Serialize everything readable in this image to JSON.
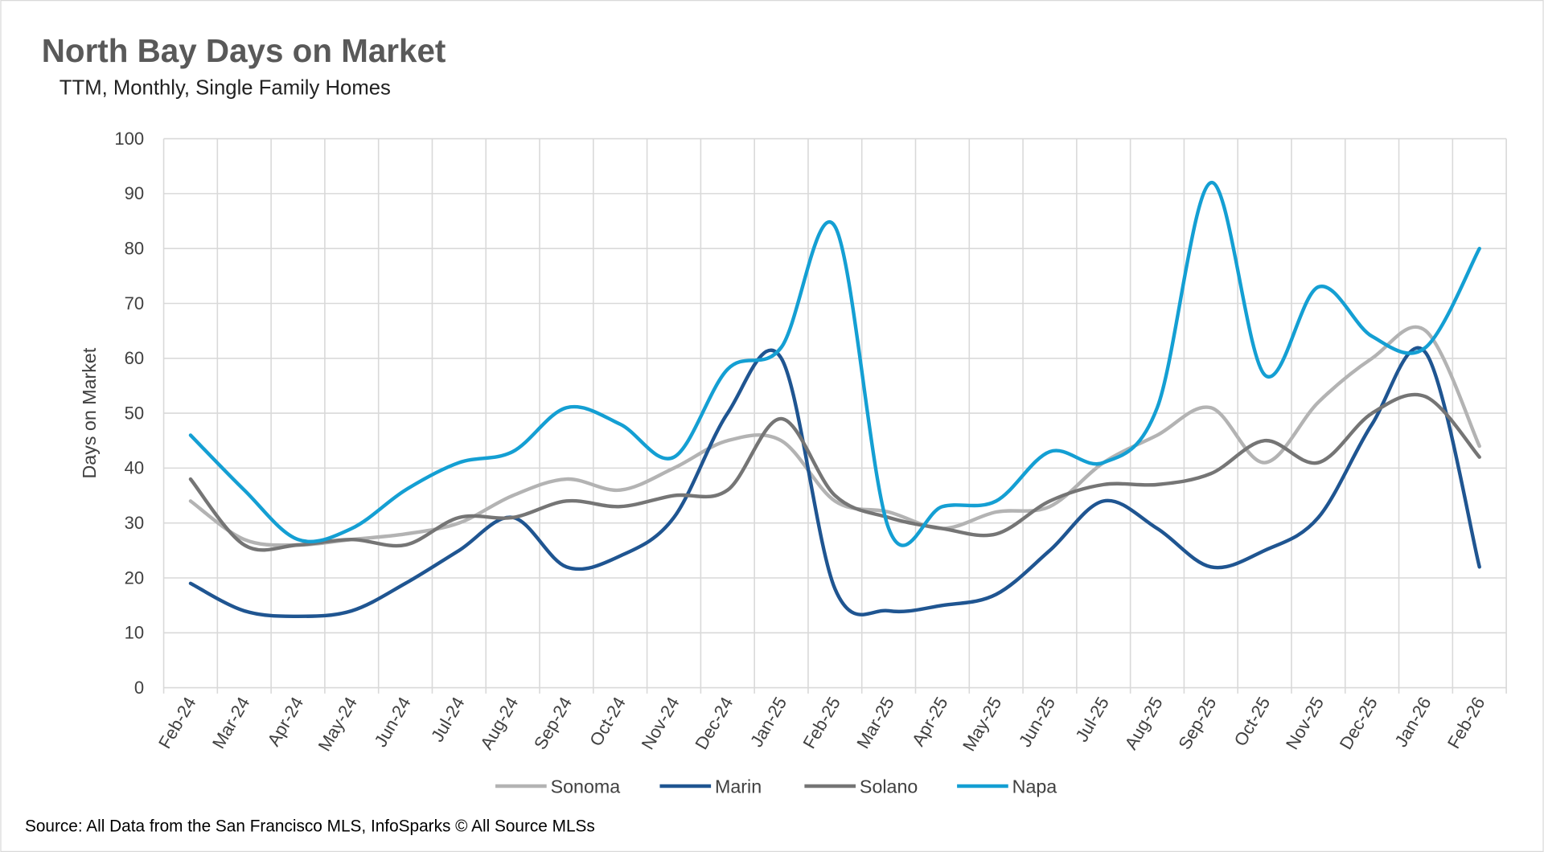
{
  "chart_data": {
    "type": "line",
    "title": "North Bay Days on Market",
    "subtitle": "TTM, Monthly, Single Family Homes",
    "xlabel": "",
    "ylabel": "Days on Market",
    "ylim": [
      0,
      100
    ],
    "yticks": [
      0,
      10,
      20,
      30,
      40,
      50,
      60,
      70,
      80,
      90,
      100
    ],
    "grid": true,
    "smooth": true,
    "legend_position": "bottom",
    "categories": [
      "Feb-24",
      "Mar-24",
      "Apr-24",
      "May-24",
      "Jun-24",
      "Jul-24",
      "Aug-24",
      "Sep-24",
      "Oct-24",
      "Nov-24",
      "Dec-24",
      "Jan-25",
      "Feb-25",
      "Mar-25",
      "Apr-25",
      "May-25",
      "Jun-25",
      "Jul-25",
      "Aug-25",
      "Sep-25",
      "Oct-25",
      "Nov-25",
      "Dec-25",
      "Jan-26",
      "Feb-26"
    ],
    "series": [
      {
        "name": "Sonoma",
        "color": "#b3b3b3",
        "values": [
          34,
          27,
          26,
          27,
          28,
          30,
          35,
          38,
          36,
          40,
          45,
          45,
          34,
          32,
          29,
          32,
          33,
          41,
          46,
          51,
          41,
          52,
          60,
          65,
          44
        ]
      },
      {
        "name": "Marin",
        "color": "#1f5591",
        "values": [
          19,
          14,
          13,
          14,
          19,
          25,
          31,
          22,
          24,
          31,
          50,
          60,
          18,
          14,
          15,
          17,
          25,
          34,
          29,
          22,
          25,
          31,
          48,
          61,
          22
        ]
      },
      {
        "name": "Solano",
        "color": "#757575",
        "values": [
          38,
          26,
          26,
          27,
          26,
          31,
          31,
          34,
          33,
          35,
          36,
          49,
          35,
          31,
          29,
          28,
          34,
          37,
          37,
          39,
          45,
          41,
          50,
          53,
          42
        ]
      },
      {
        "name": "Napa",
        "color": "#149fd3",
        "values": [
          46,
          36,
          27,
          29,
          36,
          41,
          43,
          51,
          48,
          42,
          58,
          62,
          84,
          29,
          33,
          34,
          43,
          41,
          51,
          92,
          57,
          73,
          64,
          62,
          80
        ]
      }
    ],
    "source": "Source: All Data from the San Francisco MLS, InfoSparks © All Source MLSs"
  }
}
